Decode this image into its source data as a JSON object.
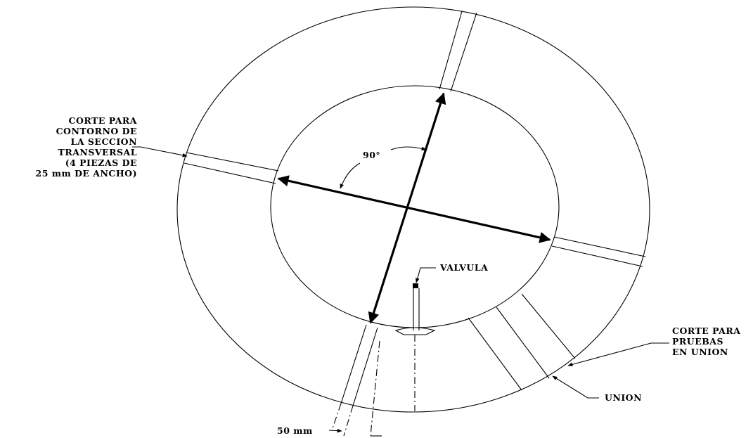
{
  "labels": {
    "cross_section_cut": [
      "CORTE PARA",
      "CONTORNO DE",
      "LA SECCION",
      "TRANSVERSAL",
      "(4 PIEZAS DE",
      "25 mm DE ANCHO)"
    ],
    "angle": "90°",
    "valve": "VALVULA",
    "union_test_cut": [
      "CORTE PARA",
      "PRUEBAS",
      "EN UNION"
    ],
    "union": "UNION",
    "width": "50 mm"
  }
}
